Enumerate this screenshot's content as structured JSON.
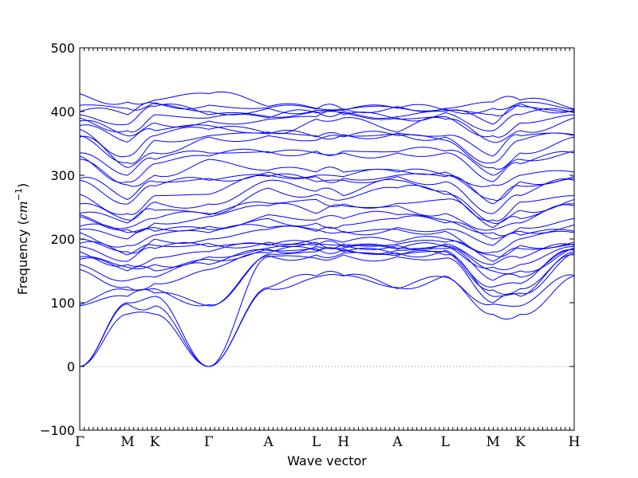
{
  "chart_data": {
    "type": "line",
    "title": "",
    "xlabel": "Wave vector",
    "ylabel": "Frequency ($cm^{-1}$)",
    "ylabel_text": "Frequency (",
    "ylabel_unit": "cm",
    "ylabel_exp": "−1",
    "ylabel_close": ")",
    "ylim": [
      -100,
      500
    ],
    "yticks": [
      -100,
      0,
      100,
      200,
      300,
      400,
      500
    ],
    "ytick_labels": [
      "−100",
      "0",
      "100",
      "200",
      "300",
      "400",
      "500"
    ],
    "path_labels": [
      "Γ",
      "M",
      "K",
      "Γ",
      "A",
      "L",
      "H",
      "A",
      "L",
      "M",
      "K",
      "H"
    ],
    "path_positions": [
      0,
      1,
      1.57,
      2.7,
      3.95,
      4.95,
      5.52,
      6.65,
      7.65,
      8.65,
      9.22,
      10.35
    ],
    "zero_line": true,
    "line_color": "#0000ff",
    "zero_line_color": "#888888",
    "n_branches": 36,
    "branch_frequencies": {
      "Γ": [
        0,
        0,
        0,
        95,
        97,
        152,
        160,
        168,
        172,
        180,
        188,
        193,
        200,
        210,
        215,
        220,
        235,
        238,
        240,
        255,
        270,
        292,
        295,
        325,
        330,
        335,
        360,
        362,
        372,
        378,
        385,
        390,
        395,
        400,
        410,
        428
      ],
      "M": [
        82,
        98,
        100,
        110,
        120,
        125,
        135,
        150,
        156,
        160,
        165,
        175,
        180,
        190,
        200,
        210,
        215,
        218,
        225,
        230,
        240,
        255,
        262,
        285,
        290,
        300,
        312,
        320,
        330,
        352,
        362,
        370,
        380,
        395,
        405,
        415
      ],
      "K": [
        82,
        95,
        110,
        115,
        122,
        130,
        140,
        150,
        160,
        170,
        185,
        190,
        200,
        206,
        212,
        218,
        225,
        232,
        245,
        258,
        268,
        283,
        290,
        300,
        318,
        325,
        335,
        355,
        362,
        370,
        382,
        395,
        408,
        412,
        414,
        418
      ],
      "A": [
        122,
        124,
        172,
        174,
        176,
        178,
        182,
        184,
        186,
        190,
        192,
        195,
        215,
        218,
        232,
        238,
        252,
        256,
        280,
        292,
        298,
        300,
        305,
        308,
        335,
        337,
        362,
        365,
        366,
        368,
        388,
        390,
        392,
        405,
        406,
        408
      ],
      "L": [
        140,
        142,
        170,
        175,
        180,
        182,
        185,
        188,
        190,
        192,
        195,
        200,
        212,
        215,
        225,
        230,
        240,
        262,
        270,
        275,
        290,
        298,
        300,
        305,
        335,
        338,
        355,
        360,
        362,
        388,
        392,
        398,
        400,
        402,
        404,
        405
      ],
      "H": [
        142,
        143,
        175,
        178,
        180,
        182,
        184,
        186,
        188,
        190,
        192,
        195,
        210,
        212,
        222,
        232,
        252,
        255,
        262,
        268,
        292,
        295,
        298,
        305,
        335,
        338,
        360,
        362,
        364,
        390,
        395,
        398,
        400,
        402,
        403,
        404
      ]
    }
  }
}
